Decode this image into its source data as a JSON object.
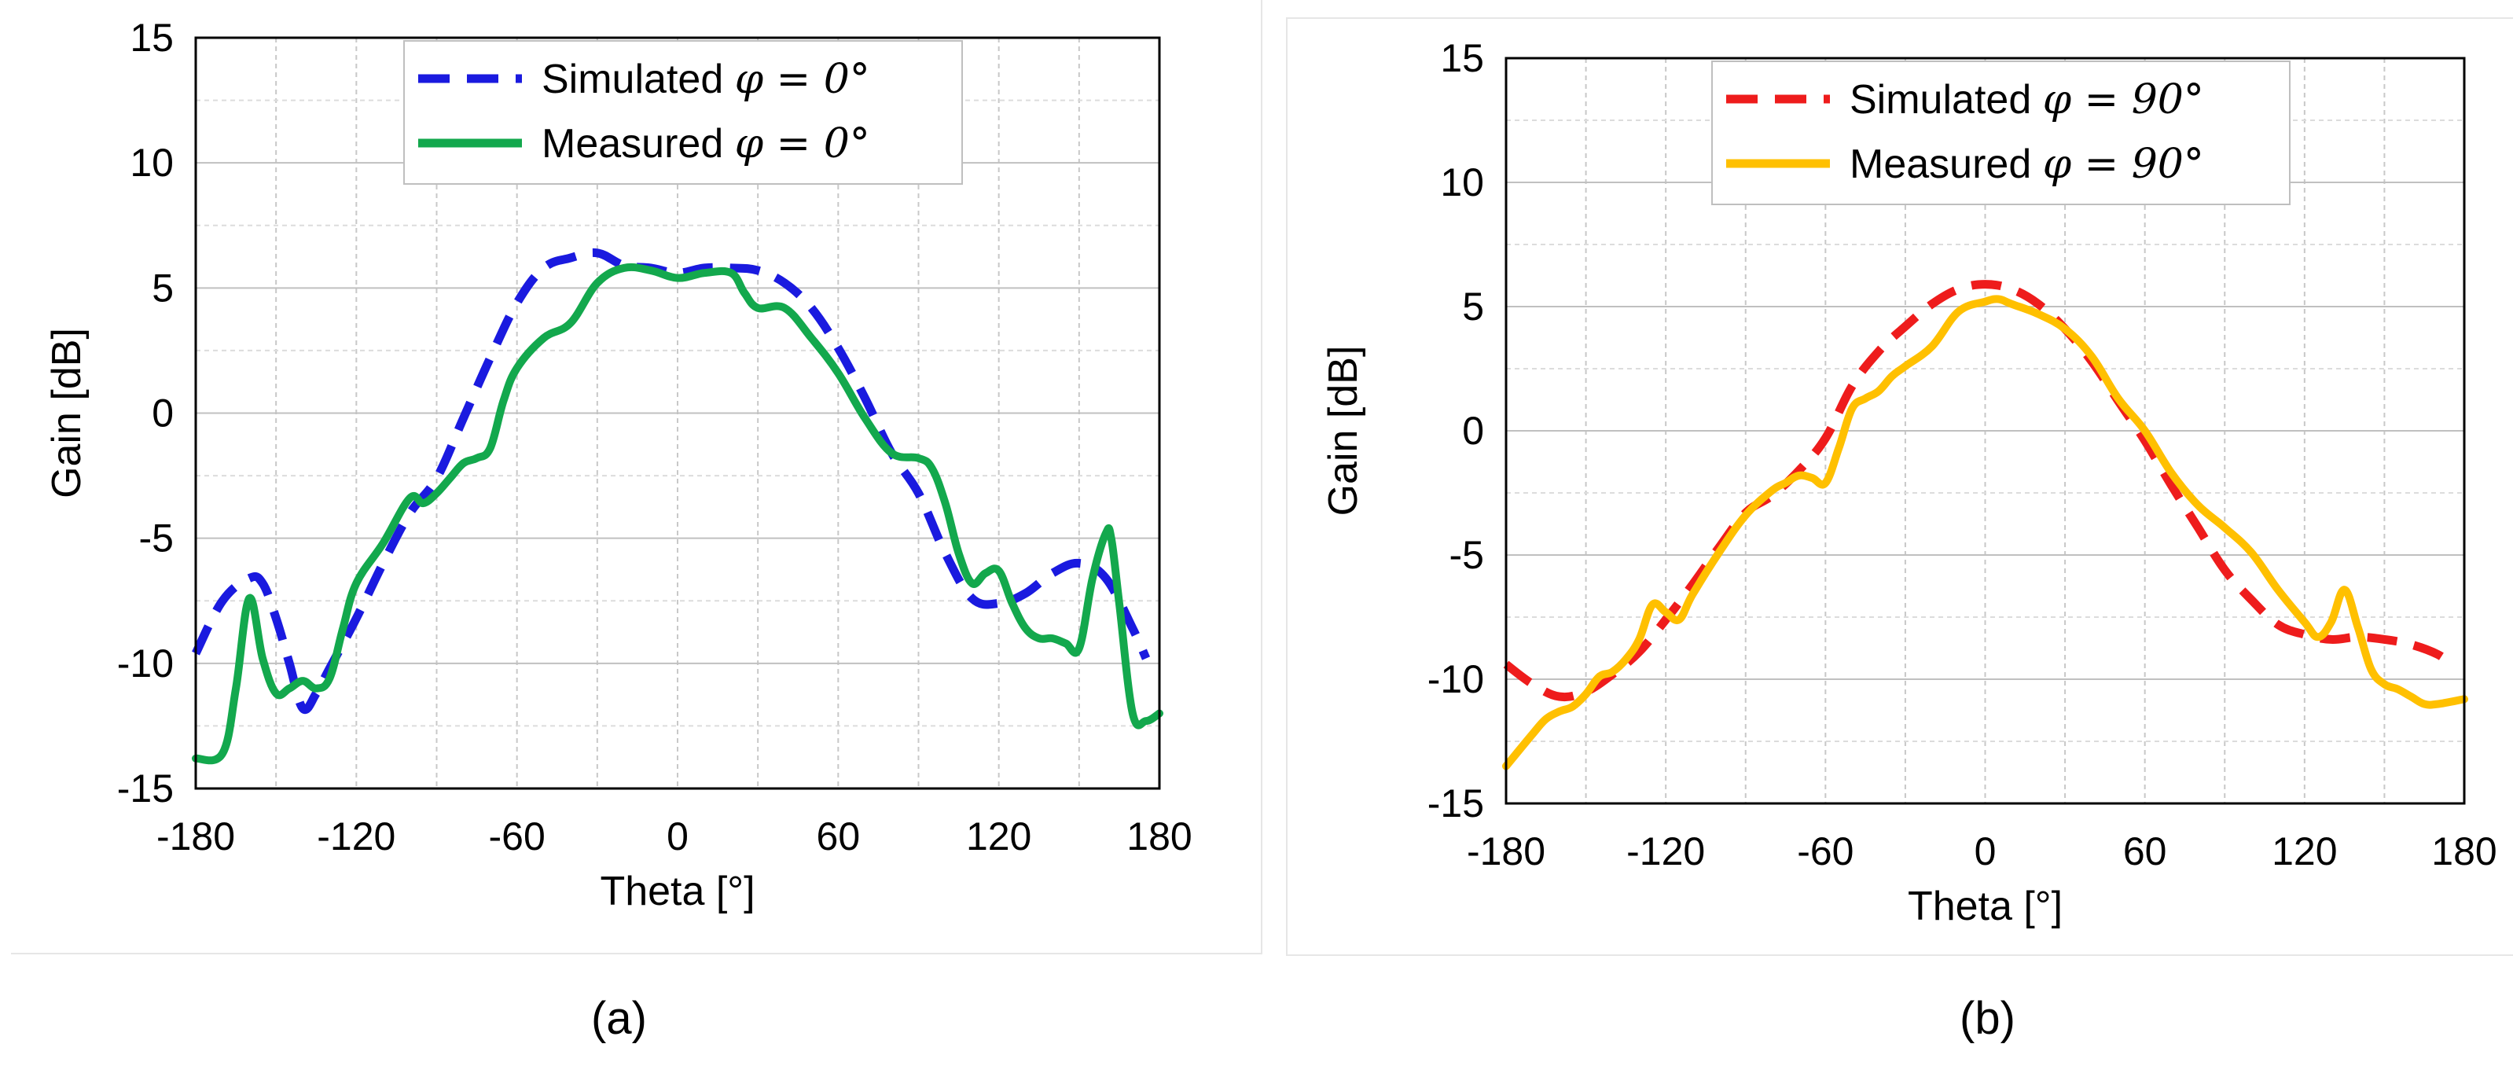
{
  "chart_data": [
    {
      "type": "line",
      "caption": "(a)",
      "xlabel": "Theta [°]",
      "ylabel": "Gain [dB]",
      "xlim": [
        -180,
        180
      ],
      "ylim": [
        -15,
        15
      ],
      "xticks": [
        "-180",
        "-120",
        "-60",
        "0",
        "60",
        "120",
        "180"
      ],
      "yticks": [
        "15",
        "10",
        "5",
        "0",
        "-5",
        "-10",
        "-15"
      ],
      "grid": true,
      "legend_position": "top-center",
      "series": [
        {
          "name": "Simulated",
          "legend_math": "φ = 0°",
          "color": "#1a1adf",
          "dash": "dashed",
          "x": [
            -180,
            -170,
            -160,
            -155,
            -150,
            -145,
            -140,
            -135,
            -130,
            -120,
            -110,
            -100,
            -90,
            -80,
            -70,
            -60,
            -50,
            -40,
            -30,
            -20,
            -10,
            0,
            10,
            20,
            30,
            40,
            50,
            60,
            70,
            80,
            90,
            100,
            110,
            120,
            130,
            140,
            150,
            160,
            170,
            175
          ],
          "y": [
            -9.6,
            -7.5,
            -6.6,
            -6.8,
            -8.2,
            -10.0,
            -11.8,
            -11.2,
            -10.2,
            -8.2,
            -6.0,
            -4.0,
            -2.6,
            -0.2,
            2.2,
            4.4,
            5.8,
            6.2,
            6.4,
            5.9,
            5.8,
            5.6,
            5.8,
            5.8,
            5.7,
            5.2,
            4.2,
            2.6,
            0.6,
            -1.6,
            -3.2,
            -5.6,
            -7.4,
            -7.6,
            -7.2,
            -6.4,
            -6.0,
            -6.6,
            -8.6,
            -9.8
          ]
        },
        {
          "name": "Measured",
          "legend_math": "φ = 0°",
          "color": "#13a84d",
          "dash": "solid",
          "x": [
            -180,
            -170,
            -165,
            -160,
            -155,
            -150,
            -145,
            -140,
            -135,
            -130,
            -125,
            -120,
            -110,
            -100,
            -95,
            -90,
            -85,
            -80,
            -75,
            -70,
            -65,
            -60,
            -50,
            -40,
            -30,
            -20,
            -10,
            0,
            10,
            20,
            25,
            30,
            40,
            50,
            60,
            70,
            80,
            90,
            95,
            100,
            105,
            110,
            115,
            120,
            125,
            130,
            135,
            140,
            145,
            150,
            155,
            160,
            162,
            165,
            170,
            175,
            180
          ],
          "y": [
            -13.8,
            -13.6,
            -11.0,
            -7.4,
            -9.8,
            -11.2,
            -11.0,
            -10.7,
            -11.0,
            -10.6,
            -8.6,
            -6.8,
            -5.2,
            -3.4,
            -3.6,
            -3.2,
            -2.6,
            -2.0,
            -1.8,
            -1.4,
            0.5,
            1.8,
            3.0,
            3.6,
            5.2,
            5.8,
            5.7,
            5.4,
            5.6,
            5.6,
            4.8,
            4.2,
            4.2,
            3.0,
            1.6,
            -0.2,
            -1.6,
            -1.8,
            -2.2,
            -3.6,
            -5.6,
            -6.8,
            -6.4,
            -6.3,
            -7.6,
            -8.6,
            -9.0,
            -9.0,
            -9.2,
            -9.4,
            -6.6,
            -4.8,
            -5.0,
            -7.6,
            -12.0,
            -12.3,
            -12.0
          ]
        }
      ]
    },
    {
      "type": "line",
      "caption": "(b)",
      "xlabel": "Theta [°]",
      "ylabel": "Gain [dB]",
      "xlim": [
        -180,
        180
      ],
      "ylim": [
        -15,
        15
      ],
      "xticks": [
        "-180",
        "-120",
        "-60",
        "0",
        "60",
        "120",
        "180"
      ],
      "yticks": [
        "15",
        "10",
        "5",
        "0",
        "-5",
        "-10",
        "-15"
      ],
      "grid": true,
      "legend_position": "top-center",
      "series": [
        {
          "name": "Simulated",
          "legend_math": "φ = 90°",
          "color": "#ee1c1c",
          "dash": "dashed",
          "x": [
            -180,
            -170,
            -160,
            -150,
            -140,
            -130,
            -120,
            -110,
            -100,
            -90,
            -80,
            -70,
            -60,
            -50,
            -40,
            -30,
            -20,
            -10,
            0,
            10,
            20,
            30,
            40,
            50,
            60,
            70,
            80,
            90,
            100,
            110,
            120,
            130,
            140,
            150,
            160,
            170,
            175
          ],
          "y": [
            -9.4,
            -10.2,
            -10.7,
            -10.5,
            -9.8,
            -8.9,
            -7.6,
            -6.2,
            -4.7,
            -3.3,
            -2.6,
            -1.6,
            -0.3,
            1.8,
            3.2,
            4.2,
            5.1,
            5.7,
            5.9,
            5.7,
            5.1,
            4.1,
            2.8,
            1.2,
            -0.4,
            -2.2,
            -3.9,
            -5.6,
            -6.8,
            -7.8,
            -8.2,
            -8.4,
            -8.3,
            -8.4,
            -8.6,
            -9.0,
            -9.4
          ]
        },
        {
          "name": "Measured",
          "legend_math": "φ = 90°",
          "color": "#ffc000",
          "dash": "solid",
          "x": [
            -180,
            -170,
            -165,
            -160,
            -155,
            -150,
            -145,
            -140,
            -135,
            -130,
            -125,
            -120,
            -115,
            -110,
            -100,
            -90,
            -80,
            -75,
            -70,
            -65,
            -60,
            -55,
            -50,
            -45,
            -40,
            -35,
            -30,
            -20,
            -10,
            0,
            5,
            10,
            20,
            30,
            40,
            50,
            60,
            70,
            80,
            90,
            100,
            110,
            120,
            125,
            130,
            135,
            140,
            145,
            150,
            155,
            160,
            165,
            170,
            180
          ],
          "y": [
            -13.5,
            -12.2,
            -11.6,
            -11.3,
            -11.1,
            -10.6,
            -9.9,
            -9.7,
            -9.2,
            -8.4,
            -7.0,
            -7.3,
            -7.6,
            -6.6,
            -4.9,
            -3.4,
            -2.4,
            -2.1,
            -1.8,
            -1.9,
            -2.1,
            -0.7,
            0.9,
            1.3,
            1.6,
            2.2,
            2.6,
            3.4,
            4.8,
            5.2,
            5.3,
            5.1,
            4.7,
            4.1,
            3.0,
            1.3,
            0.0,
            -1.7,
            -3.0,
            -3.9,
            -4.9,
            -6.4,
            -7.7,
            -8.3,
            -7.7,
            -6.4,
            -7.9,
            -9.6,
            -10.2,
            -10.4,
            -10.7,
            -11.0,
            -11.0,
            -10.8
          ]
        }
      ]
    }
  ]
}
